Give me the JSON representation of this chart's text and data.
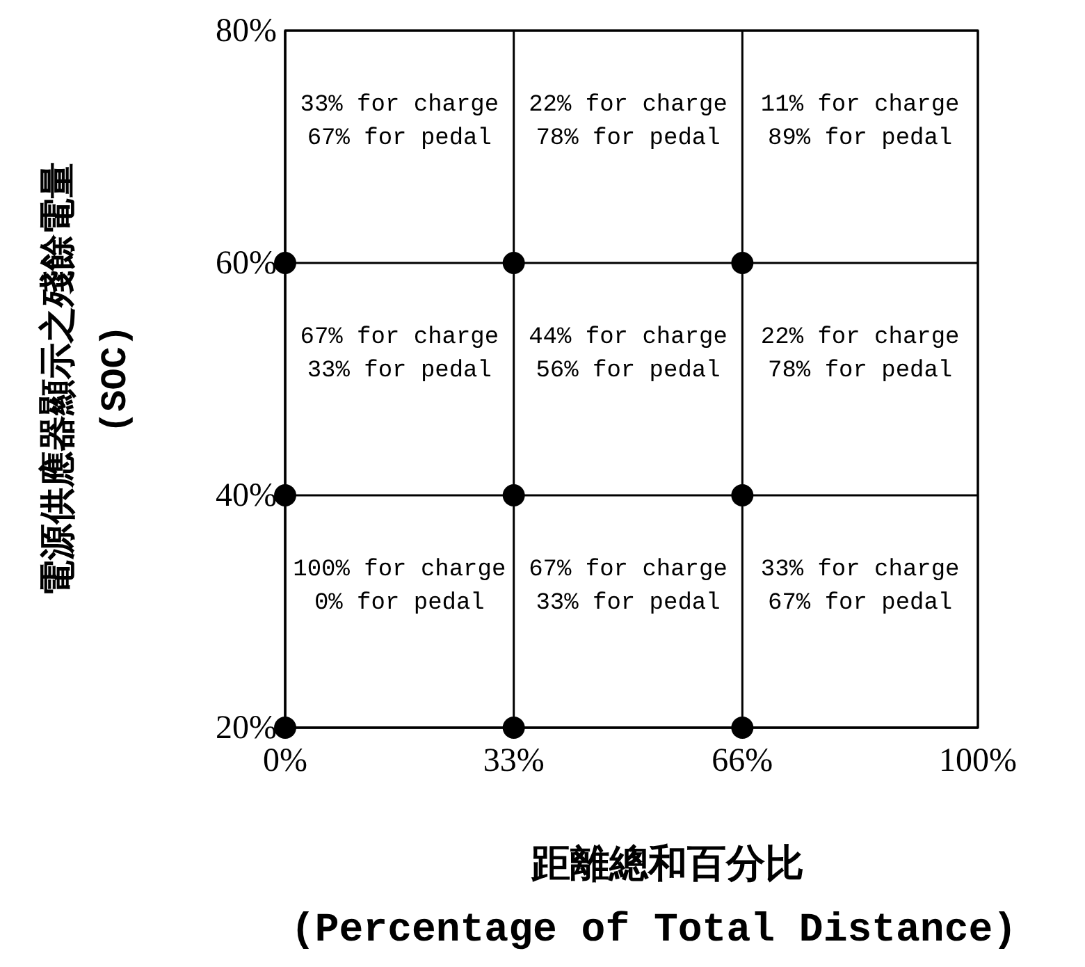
{
  "chart_data": {
    "type": "scatter",
    "xlabel": "距離總和百分比\n(Percentage of Total Distance)",
    "ylabel": "電源供應器顯示之殘餘電量\n(SOC)",
    "x": [
      0,
      33,
      66,
      0,
      33,
      66,
      0,
      33,
      66
    ],
    "values": [
      20,
      20,
      20,
      40,
      40,
      40,
      60,
      60,
      60
    ],
    "color": "#000000",
    "marker": "circle",
    "grid": true,
    "xlim": [
      0,
      100
    ],
    "xticks": [
      {
        "value": 0,
        "label": "0%"
      },
      {
        "value": 33,
        "label": "33%"
      },
      {
        "value": 66,
        "label": "66%"
      },
      {
        "value": 100,
        "label": "100%"
      }
    ],
    "ylim": [
      20,
      80
    ],
    "yticks": [
      {
        "value": 20,
        "label": "20%"
      },
      {
        "value": 40,
        "label": "40%"
      },
      {
        "value": 60,
        "label": "60%"
      },
      {
        "value": 80,
        "label": "80%"
      }
    ],
    "annotations": [
      "33% for charge\n67% for pedal",
      "22% for charge\n78% for pedal",
      "11% for charge\n89% for pedal",
      "67% for charge\n33% for pedal",
      "44% for charge\n56% for pedal",
      "22% for charge\n78% for pedal",
      "100% for charge\n0% for pedal",
      "67% for charge\n33% for pedal",
      "33% for charge\n67% for pedal"
    ]
  }
}
